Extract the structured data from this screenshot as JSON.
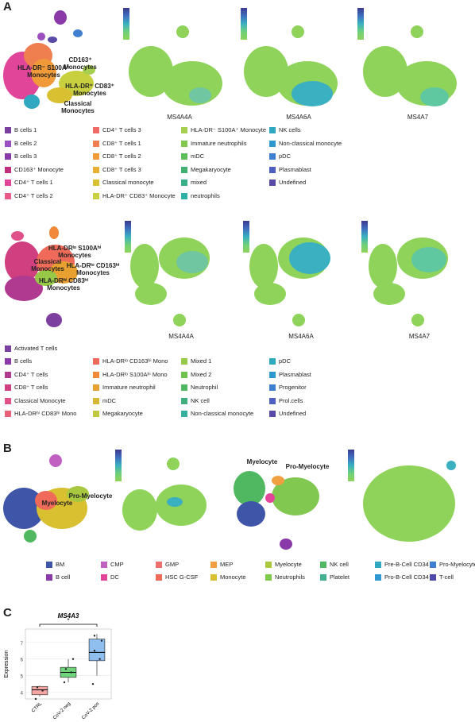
{
  "panels": {
    "A": "A",
    "B": "B",
    "C": "C"
  },
  "rowA1": {
    "annotations": {
      "cd163": "CD163⁺ Monocytes",
      "hladr": "HLA-DR⁻ S100A⁺ Monocytes",
      "hladr83": "HLA-DR⁺ CD83⁺ Monocytes",
      "classical": "Classical Monocytes"
    },
    "genes": [
      "MS4A4A",
      "MS4A6A",
      "MS4A7"
    ],
    "legend": [
      {
        "label": "B cells 1",
        "color": "#7b3fa0"
      },
      {
        "label": "B cells 2",
        "color": "#9b4fc0"
      },
      {
        "label": "B cells 3",
        "color": "#8a3aa8"
      },
      {
        "label": "CD163⁺ Monocyte",
        "color": "#c0307a"
      },
      {
        "label": "CD4⁺ T cells 1",
        "color": "#e0459a"
      },
      {
        "label": "CD4⁺ T cells 2",
        "color": "#e85a8a"
      },
      {
        "label": "CD4⁺ T cells 3",
        "color": "#f06a6a"
      },
      {
        "label": "CD8⁺ T cells 1",
        "color": "#f07f4f"
      },
      {
        "label": "CD8⁺ T cells 2",
        "color": "#f09a3a"
      },
      {
        "label": "CD8⁺ T cells 3",
        "color": "#e8b030"
      },
      {
        "label": "Classical monocyte",
        "color": "#d8c030"
      },
      {
        "label": "HLA-DR⁺ CD83⁺ Monocyte",
        "color": "#c8d040"
      },
      {
        "label": "HLA-DR⁻ S100A⁺ Monocyte",
        "color": "#a8d050"
      },
      {
        "label": "Immature neutrophils",
        "color": "#80c850"
      },
      {
        "label": "mDC",
        "color": "#5cbf5c"
      },
      {
        "label": "Megakaryocyte",
        "color": "#40b070"
      },
      {
        "label": "mixed",
        "color": "#38b08a"
      },
      {
        "label": "neutrophils",
        "color": "#30b0a8"
      },
      {
        "label": "NK cells",
        "color": "#30a8c0"
      },
      {
        "label": "Non-classical monocyte",
        "color": "#3098d0"
      },
      {
        "label": "pDC",
        "color": "#3f7fd0"
      },
      {
        "label": "Plasmablast",
        "color": "#4f5fc0"
      },
      {
        "label": "Undefined",
        "color": "#5a4aa8"
      }
    ]
  },
  "rowA2": {
    "annotations": {
      "hladrlo": "HLA-DRˡᵒ S100Aʰⁱ Monocytes",
      "classical": "Classical Monocytes",
      "hladrlo163": "HLA-DRˡᵒ CD163ʰⁱ Monocytes",
      "hladrhi83": "HLA-DRʰⁱ CD83ʰⁱ Monocytes"
    },
    "genes": [
      "MS4A4A",
      "MS4A6A",
      "MS4A7"
    ],
    "legend": [
      {
        "label": "Activated T cells",
        "color": "#7b3fa0"
      },
      {
        "label": "B cells",
        "color": "#8a3aa8"
      },
      {
        "label": "CD4⁺ T cells",
        "color": "#b03a90"
      },
      {
        "label": "CD8⁺ T cells",
        "color": "#d04080"
      },
      {
        "label": "Classical Monocyte",
        "color": "#e0508a"
      },
      {
        "label": "HLA-DRʰⁱ CD83ʰⁱ Mono",
        "color": "#e8607a"
      },
      {
        "label": "HLA-DRˡᵒ CD163ʰⁱ Mono",
        "color": "#f06a5a"
      },
      {
        "label": "HLA-DRˡᵒ S100Aʰⁱ Mono",
        "color": "#f08a3a"
      },
      {
        "label": "Immature neutrophil",
        "color": "#e8a030"
      },
      {
        "label": "mDC",
        "color": "#d8b830"
      },
      {
        "label": "Megakaryocyte",
        "color": "#c0c840"
      },
      {
        "label": "Mixed 1",
        "color": "#98c848"
      },
      {
        "label": "Mixed 2",
        "color": "#70c050"
      },
      {
        "label": "Neutrophil",
        "color": "#50b860"
      },
      {
        "label": "NK cell",
        "color": "#40b080"
      },
      {
        "label": "Non-classical monocyte",
        "color": "#38b0a0"
      },
      {
        "label": "pDC",
        "color": "#30a8c0"
      },
      {
        "label": "Plasmablast",
        "color": "#3098d0"
      },
      {
        "label": "Progenitor",
        "color": "#3f7fd0"
      },
      {
        "label": "Prol.cells",
        "color": "#4f60c0"
      },
      {
        "label": "Undefined",
        "color": "#5a4aa8"
      }
    ]
  },
  "rowB": {
    "annotations": {
      "promyelocyte": "Pro-Myelocyte",
      "myelocyte": "Myelocyte",
      "myelocyte2": "Myelocyte",
      "promyelocyte2": "Pro-Myelocyte"
    },
    "legend": [
      {
        "label": "BM",
        "color": "#3f55a8"
      },
      {
        "label": "B cell",
        "color": "#8a3aa8"
      },
      {
        "label": "CMP",
        "color": "#c060c0"
      },
      {
        "label": "DC",
        "color": "#e0459a"
      },
      {
        "label": "GMP",
        "color": "#f07070"
      },
      {
        "label": "HSC G-CSF",
        "color": "#f06a5a"
      },
      {
        "label": "MEP",
        "color": "#f0a040"
      },
      {
        "label": "Monocyte",
        "color": "#d8c030"
      },
      {
        "label": "Myelocyte",
        "color": "#a8c840"
      },
      {
        "label": "Neutrophils",
        "color": "#80c850"
      },
      {
        "label": "NK cell",
        "color": "#50b860"
      },
      {
        "label": "Platelet",
        "color": "#40b090"
      },
      {
        "label": "Pre-B-Cell CD34",
        "color": "#30a8c0"
      },
      {
        "label": "Pro-B-Cell CD34⁺",
        "color": "#3098d0"
      },
      {
        "label": "Pro-Myelocyte",
        "color": "#3f7fd0"
      },
      {
        "label": "T-cell",
        "color": "#4f4aa8"
      }
    ]
  },
  "chart_data": {
    "type": "box",
    "title": "MS4A3",
    "ylabel": "Expression",
    "ylim": [
      3.6,
      7.8
    ],
    "yticks": [
      4,
      5,
      6,
      7
    ],
    "significance": "*",
    "categories": [
      "CTRL",
      "CoV-2 neg",
      "CoV-2 pos"
    ],
    "colors": [
      "#f4a6a0",
      "#6fd47a",
      "#8fbfef"
    ],
    "boxes": [
      {
        "q1": 3.85,
        "median": 4.15,
        "q3": 4.35,
        "min": 3.75,
        "max": 4.4,
        "points": [
          3.6,
          4.1,
          4.3
        ]
      },
      {
        "q1": 4.9,
        "median": 5.2,
        "q3": 5.5,
        "min": 4.6,
        "max": 6.0,
        "points": [
          4.6,
          5.2,
          5.4,
          6.0
        ]
      },
      {
        "q1": 5.9,
        "median": 6.4,
        "q3": 7.2,
        "min": 5.0,
        "max": 7.5,
        "points": [
          4.5,
          6.0,
          6.5,
          7.1,
          7.4
        ]
      }
    ]
  }
}
